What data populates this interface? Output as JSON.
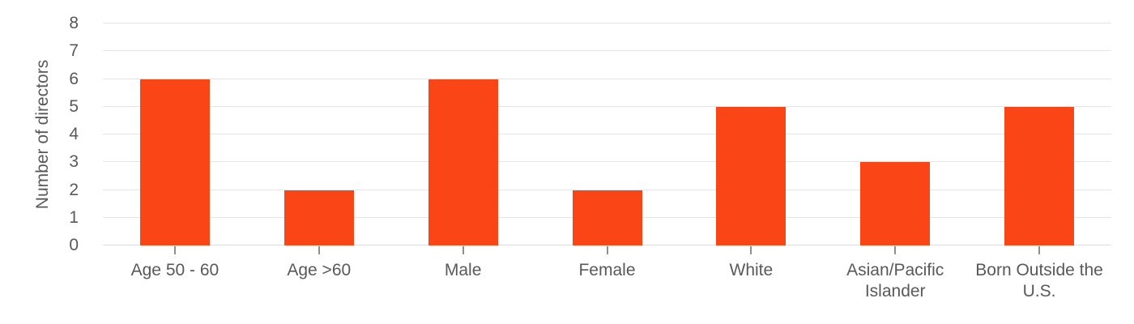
{
  "chart_data": {
    "type": "bar",
    "categories": [
      "Age 50 - 60",
      "Age >60",
      "Male",
      "Female",
      "White",
      "Asian/Pacific Islander",
      "Born Outside the U.S."
    ],
    "values": [
      6,
      2,
      6,
      2,
      5,
      3,
      5
    ],
    "title": "",
    "xlabel": "",
    "ylabel": "Number of directors",
    "ylim": [
      0,
      8
    ],
    "yticks": [
      0,
      1,
      2,
      3,
      4,
      5,
      6,
      7,
      8
    ],
    "grid": true,
    "legend_position": "none",
    "colors": {
      "bar": "#FA4616",
      "gridline": "#E5E5E5",
      "axis_line": "#DCDCDC",
      "tick_mark": "#8F8F8F",
      "text": "#595959"
    }
  }
}
